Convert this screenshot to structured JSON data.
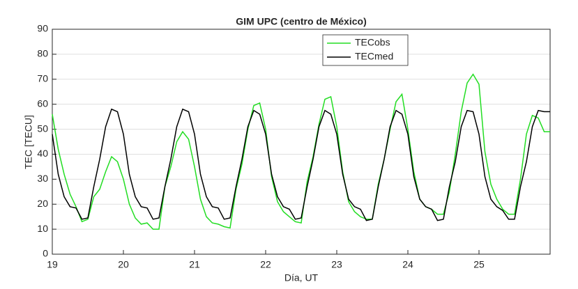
{
  "chart_data": {
    "type": "line",
    "title": "GIM UPC (centro de México)",
    "x_label": "Día, UT",
    "y_label": "TEC [TECU]",
    "x": [
      19,
      19.083,
      19.167,
      19.25,
      19.333,
      19.417,
      19.5,
      19.583,
      19.667,
      19.75,
      19.833,
      19.917,
      20,
      20.083,
      20.167,
      20.25,
      20.333,
      20.417,
      20.5,
      20.583,
      20.667,
      20.75,
      20.833,
      20.917,
      21,
      21.083,
      21.167,
      21.25,
      21.333,
      21.417,
      21.5,
      21.583,
      21.667,
      21.75,
      21.833,
      21.917,
      22,
      22.083,
      22.167,
      22.25,
      22.333,
      22.417,
      22.5,
      22.583,
      22.667,
      22.75,
      22.833,
      22.917,
      23,
      23.083,
      23.167,
      23.25,
      23.333,
      23.417,
      23.5,
      23.583,
      23.667,
      23.75,
      23.833,
      23.917,
      24,
      24.083,
      24.167,
      24.25,
      24.333,
      24.417,
      24.5,
      24.583,
      24.667,
      24.75,
      24.833,
      24.917,
      25,
      25.083,
      25.167,
      25.25,
      25.333,
      25.417,
      25.5,
      25.583,
      25.667,
      25.75,
      25.833,
      25.917,
      26
    ],
    "series": [
      {
        "name": "TECobs",
        "color": "#22dd22",
        "values": [
          56,
          42,
          32,
          24,
          19,
          13,
          14,
          23,
          26,
          33,
          39,
          37,
          30,
          20,
          14.5,
          12,
          12.5,
          10,
          10,
          27,
          35,
          45,
          49,
          46,
          35,
          22,
          15,
          12.5,
          12,
          11,
          10.5,
          26,
          36,
          50,
          59.5,
          60.5,
          50,
          31,
          21,
          17,
          15,
          13,
          12.5,
          29,
          39,
          52,
          62,
          63,
          51,
          33,
          21,
          17,
          15,
          14,
          14,
          28,
          38,
          50,
          61,
          64,
          50,
          33,
          22,
          19,
          18,
          16,
          16,
          25,
          40,
          57,
          68.5,
          72,
          68,
          41,
          28,
          22,
          18,
          16,
          16,
          30,
          48,
          55.5,
          54.5,
          49,
          49
        ]
      },
      {
        "name": "TECmed",
        "color": "#000000",
        "values": [
          48,
          32,
          23,
          19,
          18.5,
          14,
          14.5,
          27,
          38,
          51,
          58,
          57,
          48,
          32,
          23,
          19,
          18.5,
          14,
          14.5,
          27,
          38,
          51,
          58,
          57,
          48,
          32,
          23,
          19,
          18.5,
          14,
          14.5,
          27,
          38,
          51,
          57.5,
          56,
          48,
          32,
          23,
          19,
          18,
          14,
          14.5,
          27,
          38,
          51,
          57.5,
          56,
          48,
          32,
          22,
          19,
          18,
          13.5,
          14,
          27,
          38,
          51,
          57.5,
          56,
          48,
          31,
          22,
          19,
          18,
          13.5,
          14,
          27,
          37,
          51,
          57.5,
          57,
          48,
          31,
          22,
          19,
          17.5,
          14,
          14,
          27,
          37,
          51,
          57.5,
          57,
          57
        ]
      }
    ],
    "xlim": [
      19,
      26
    ],
    "xticks": [
      19,
      20,
      21,
      22,
      23,
      24,
      25
    ],
    "ylim": [
      0,
      90
    ],
    "yticks": [
      0,
      10,
      20,
      30,
      40,
      50,
      60,
      70,
      80,
      90
    ],
    "grid": true,
    "legend_loc": "upper right"
  }
}
